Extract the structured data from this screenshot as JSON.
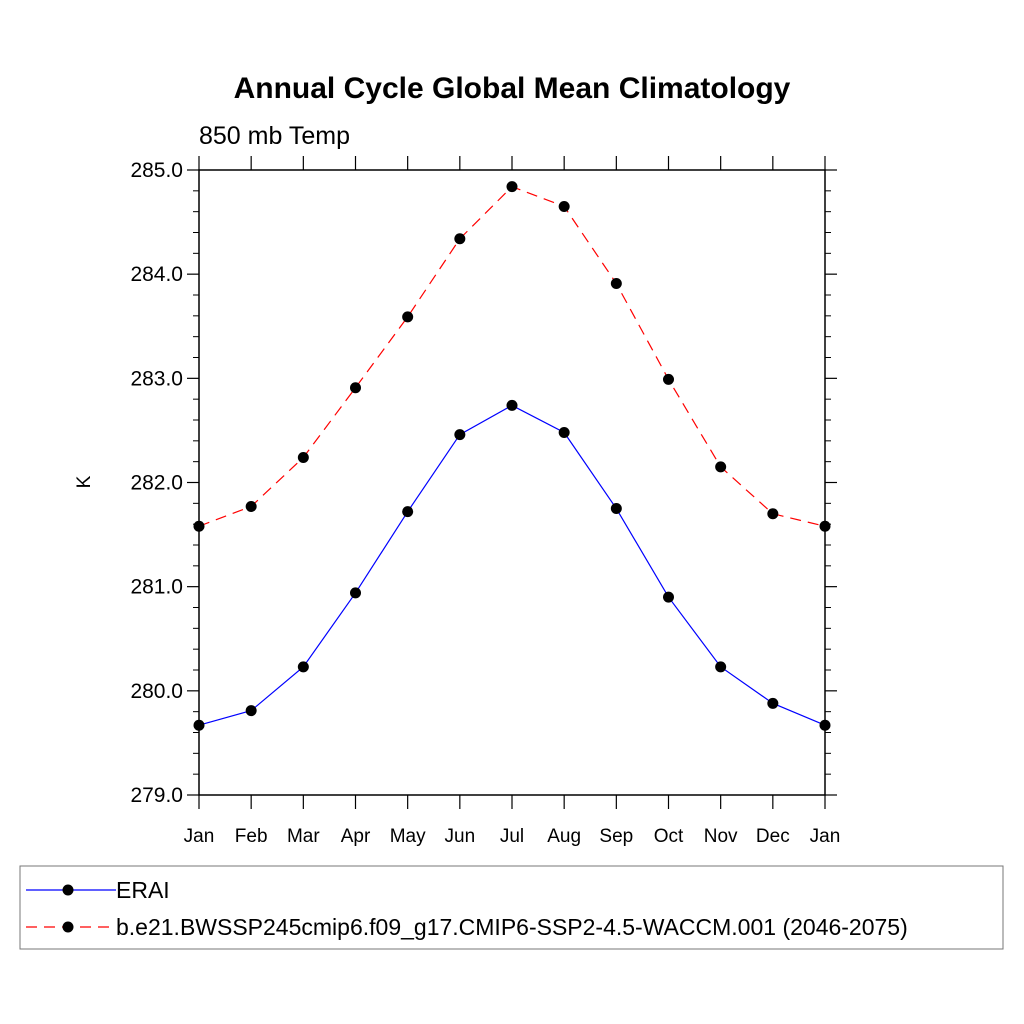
{
  "chart_data": {
    "type": "line",
    "title": "Annual Cycle Global Mean Climatology",
    "subtitle": "850 mb Temp",
    "xlabel": "",
    "ylabel": "K",
    "categories": [
      "Jan",
      "Feb",
      "Mar",
      "Apr",
      "May",
      "Jun",
      "Jul",
      "Aug",
      "Sep",
      "Oct",
      "Nov",
      "Dec",
      "Jan"
    ],
    "ylim": [
      279.0,
      285.0
    ],
    "yticks": [
      279.0,
      280.0,
      281.0,
      282.0,
      283.0,
      284.0,
      285.0
    ],
    "ytick_labels": [
      "279.0",
      "280.0",
      "281.0",
      "282.0",
      "283.0",
      "284.0",
      "285.0"
    ],
    "grid": false,
    "legend_position": "bottom",
    "series": [
      {
        "name": "ERAI",
        "color": "#0000ff",
        "dash": "solid",
        "marker": "filled-circle",
        "values": [
          279.67,
          279.81,
          280.23,
          280.94,
          281.72,
          282.46,
          282.74,
          282.48,
          281.75,
          280.9,
          280.23,
          279.88,
          279.67
        ]
      },
      {
        "name": "b.e21.BWSSP245cmip6.f09_g17.CMIP6-SSP2-4.5-WACCM.001 (2046-2075)",
        "color": "#ff0000",
        "dash": "dashed",
        "marker": "filled-circle",
        "values": [
          281.58,
          281.77,
          282.24,
          282.91,
          283.59,
          284.34,
          284.84,
          284.65,
          283.91,
          282.99,
          282.15,
          281.7,
          281.58
        ]
      }
    ]
  }
}
